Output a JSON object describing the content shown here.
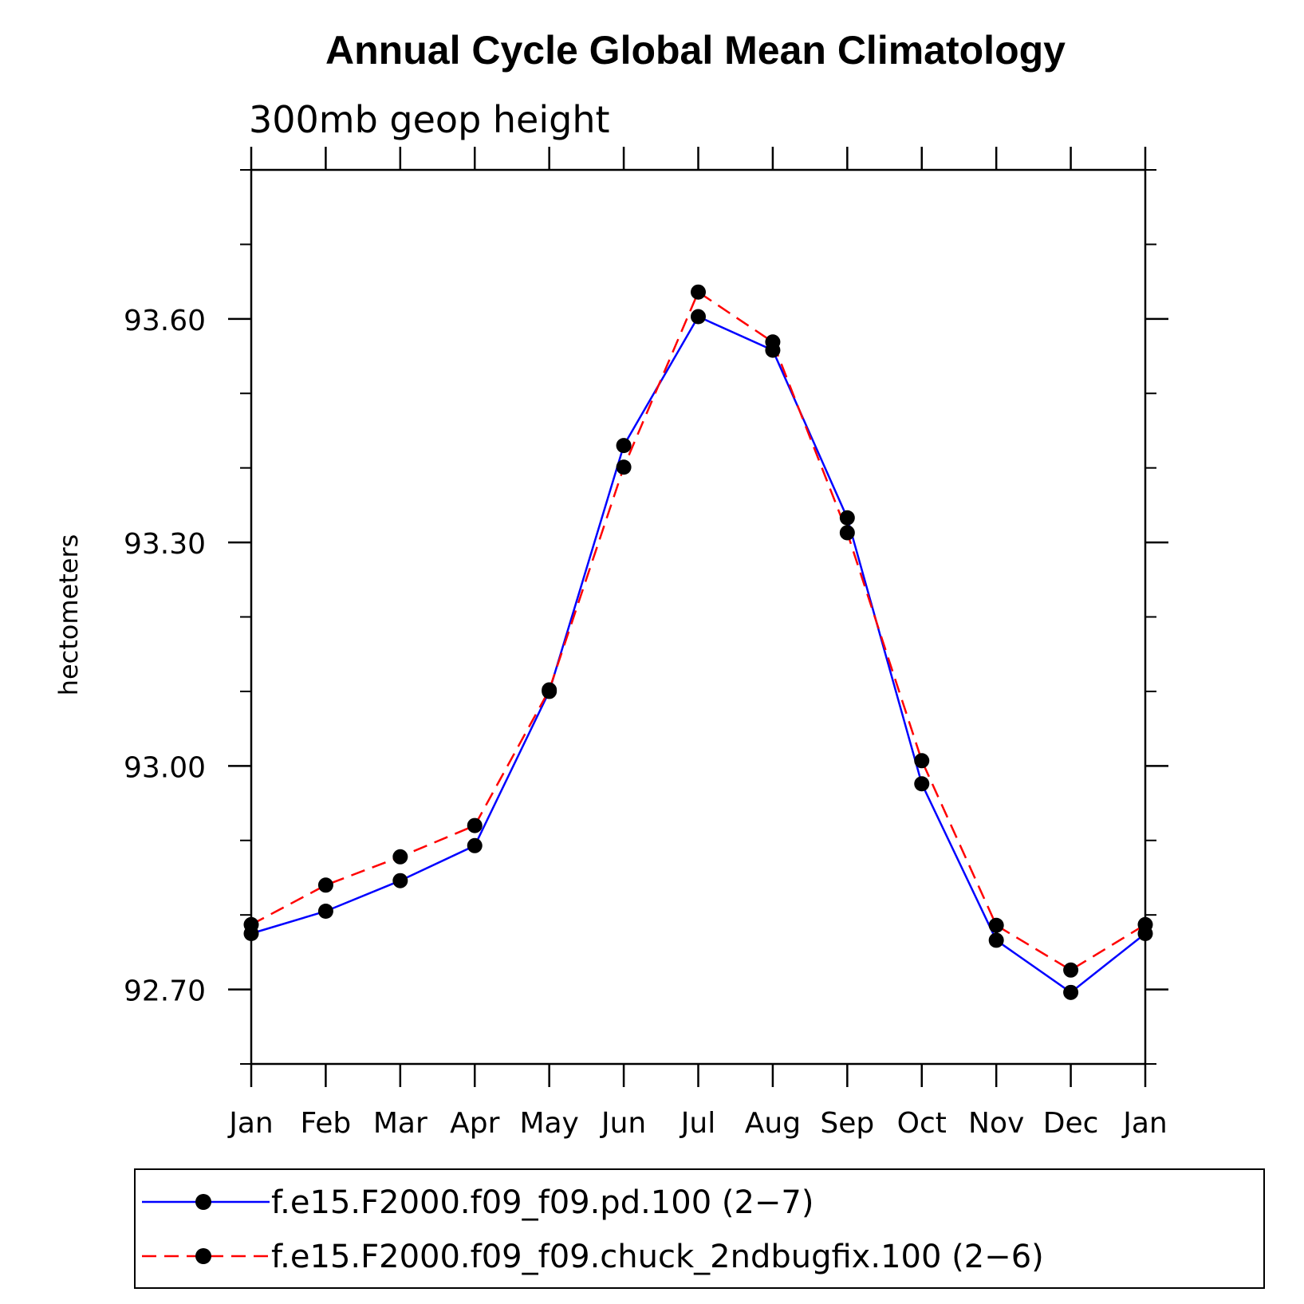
{
  "chart_data": {
    "type": "line",
    "title": "Annual Cycle Global Mean Climatology",
    "subtitle": "300mb geop height",
    "xlabel": "",
    "ylabel": "hectometers",
    "categories": [
      "Jan",
      "Feb",
      "Mar",
      "Apr",
      "May",
      "Jun",
      "Jul",
      "Aug",
      "Sep",
      "Oct",
      "Nov",
      "Dec",
      "Jan"
    ],
    "ylim": [
      92.6,
      93.8
    ],
    "yticks_major": [
      "92.70",
      "93.00",
      "93.30",
      "93.60"
    ],
    "yticks_minor": [
      92.6,
      92.8,
      92.9,
      93.1,
      93.2,
      93.4,
      93.5,
      93.7,
      93.8
    ],
    "grid": false,
    "legend_position": "bottom",
    "series": [
      {
        "name": "f.e15.F2000.f09_f09.pd.100 (2−7)",
        "color": "#0000ff",
        "dash": "solid",
        "marker": "circle",
        "values": [
          92.775,
          92.805,
          92.846,
          92.893,
          93.1,
          93.43,
          93.603,
          93.558,
          93.333,
          92.976,
          92.766,
          92.696,
          92.775
        ]
      },
      {
        "name": "f.e15.F2000.f09_f09.chuck_2ndbugfix.100 (2−6)",
        "color": "#ff0000",
        "dash": "dashed",
        "marker": "circle",
        "values": [
          92.787,
          92.84,
          92.878,
          92.92,
          93.102,
          93.401,
          93.636,
          93.569,
          93.313,
          93.007,
          92.786,
          92.726,
          92.787
        ]
      }
    ]
  }
}
